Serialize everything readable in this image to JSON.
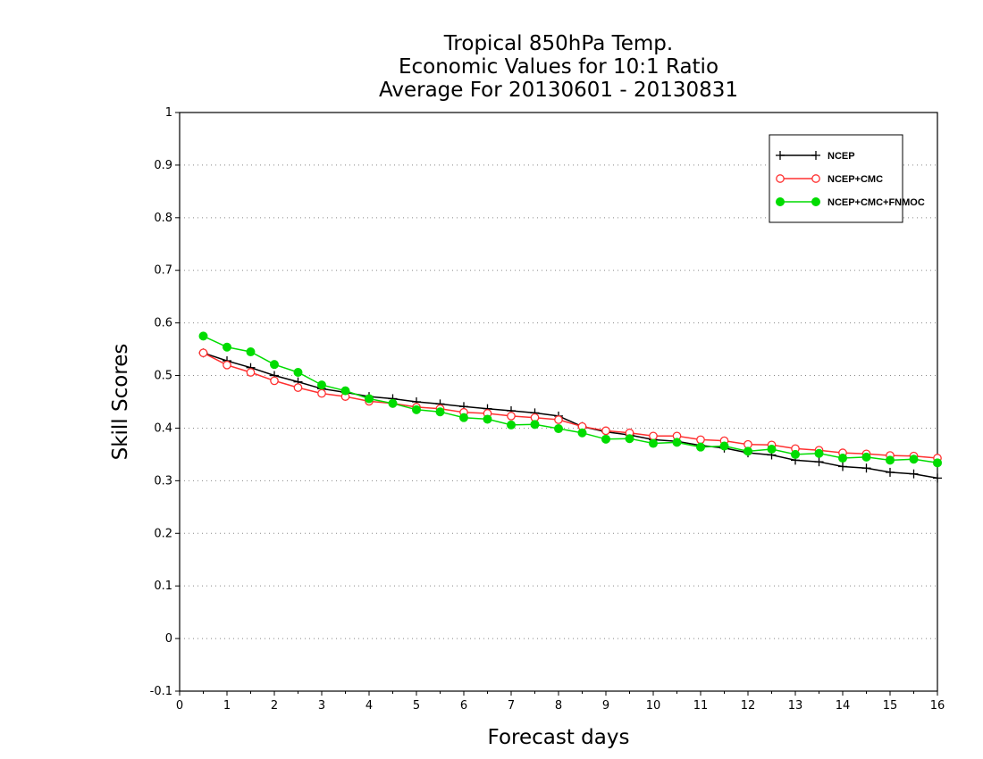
{
  "chart_data": {
    "type": "line",
    "title": [
      "Tropical 850hPa Temp.",
      "Economic Values for 10:1 Ratio",
      "Average For 20130601 - 20130831"
    ],
    "xlabel": "Forecast days",
    "ylabel": "Skill Scores",
    "xlim": [
      0,
      16
    ],
    "ylim": [
      -0.1,
      1
    ],
    "xticks": [
      0,
      1,
      2,
      3,
      4,
      5,
      6,
      7,
      8,
      9,
      10,
      11,
      12,
      13,
      14,
      15,
      16
    ],
    "yticks": [
      -0.1,
      0,
      0.1,
      0.2,
      0.3,
      0.4,
      0.5,
      0.6,
      0.7,
      0.8,
      0.9,
      1
    ],
    "ytick_labels": [
      "-0.1",
      "0",
      "0.1",
      "0.2",
      "0.3",
      "0.4",
      "0.5",
      "0.6",
      "0.7",
      "0.8",
      "0.9",
      "1"
    ],
    "grid": "horizontal-dotted",
    "legend": "top-right",
    "x": [
      0.5,
      1,
      1.5,
      2,
      2.5,
      3,
      3.5,
      4,
      4.5,
      5,
      5.5,
      6,
      6.5,
      7,
      7.5,
      8,
      8.5,
      9,
      9.5,
      10,
      10.5,
      11,
      11.5,
      12,
      12.5,
      13,
      13.5,
      14,
      14.5,
      15,
      15.5,
      16
    ],
    "series": [
      {
        "name": "NCEP",
        "color": "#000000",
        "marker": "plus",
        "values": [
          0.543,
          0.528,
          0.515,
          0.5,
          0.488,
          0.475,
          0.468,
          0.46,
          0.456,
          0.45,
          0.446,
          0.441,
          0.437,
          0.433,
          0.429,
          0.423,
          0.403,
          0.393,
          0.387,
          0.378,
          0.375,
          0.367,
          0.362,
          0.353,
          0.349,
          0.339,
          0.336,
          0.327,
          0.324,
          0.316,
          0.313,
          0.305
        ]
      },
      {
        "name": "NCEP+CMC",
        "color": "#ff3030",
        "marker": "open-circle",
        "values": [
          0.543,
          0.52,
          0.506,
          0.49,
          0.477,
          0.466,
          0.46,
          0.451,
          0.447,
          0.44,
          0.437,
          0.43,
          0.428,
          0.423,
          0.42,
          0.416,
          0.403,
          0.395,
          0.391,
          0.385,
          0.385,
          0.378,
          0.376,
          0.369,
          0.368,
          0.361,
          0.358,
          0.353,
          0.351,
          0.348,
          0.347,
          0.343
        ]
      },
      {
        "name": "NCEP+CMC+FNMOC",
        "color": "#00dc00",
        "marker": "filled-circle",
        "values": [
          0.575,
          0.554,
          0.545,
          0.521,
          0.506,
          0.482,
          0.471,
          0.456,
          0.447,
          0.435,
          0.431,
          0.42,
          0.417,
          0.406,
          0.407,
          0.399,
          0.391,
          0.379,
          0.38,
          0.371,
          0.373,
          0.364,
          0.366,
          0.356,
          0.36,
          0.35,
          0.352,
          0.343,
          0.345,
          0.339,
          0.341,
          0.334
        ]
      }
    ]
  }
}
